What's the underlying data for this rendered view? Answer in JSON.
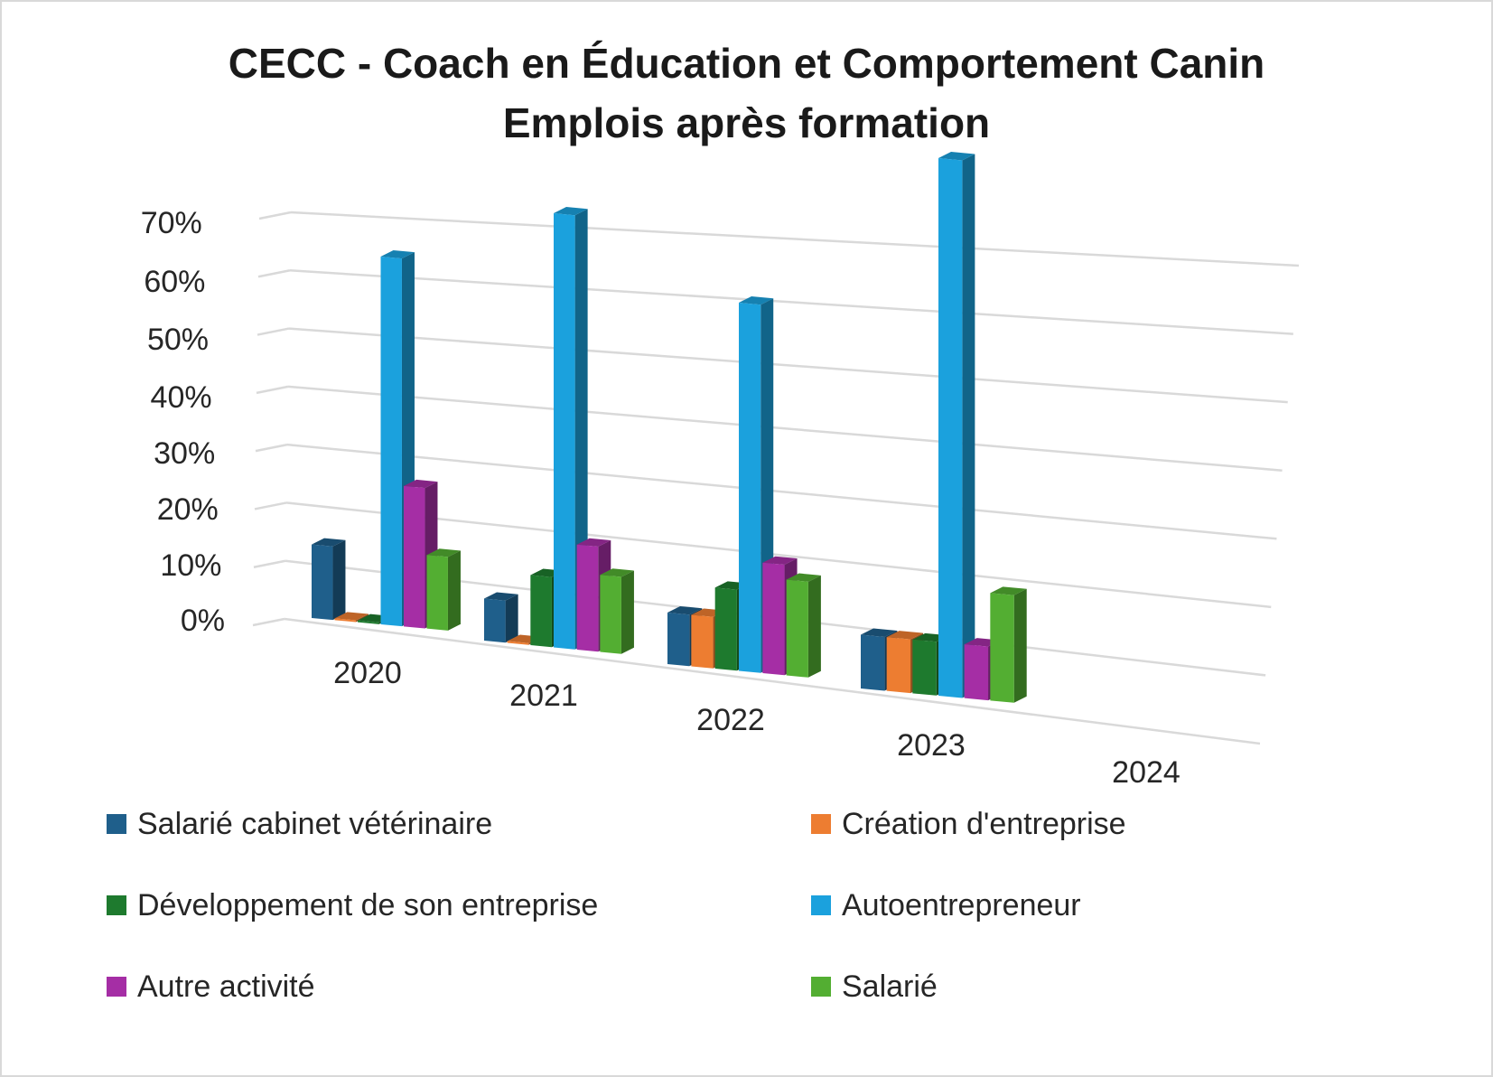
{
  "chart_data": {
    "type": "bar",
    "subtype": "3d-clustered-column",
    "title": "CECC - Coach en Éducation et Comportement Canin",
    "subtitle": "Emplois après formation",
    "categories": [
      "2020",
      "2021",
      "2022",
      "2023",
      "2024"
    ],
    "yticks": [
      "0%",
      "10%",
      "20%",
      "30%",
      "40%",
      "50%",
      "60%",
      "70%"
    ],
    "ylim": [
      0,
      70
    ],
    "grid": true,
    "legend_position": "bottom",
    "series": [
      {
        "name": "Salarié cabinet vétérinaire",
        "color": "#1f5f8b",
        "values": [
          11,
          6,
          7,
          7,
          0
        ]
      },
      {
        "name": "Création d'entreprise",
        "color": "#ed7d31",
        "values": [
          0,
          0,
          7,
          7,
          0
        ]
      },
      {
        "name": "Développement de son entreprise",
        "color": "#1e7a2e",
        "values": [
          0,
          10,
          11,
          7,
          0
        ]
      },
      {
        "name": "Autoentrepreneur",
        "color": "#1ba1dd",
        "values": [
          55,
          62,
          50,
          70,
          0
        ]
      },
      {
        "name": "Autre activité",
        "color": "#a52ea5",
        "values": [
          21,
          15,
          15,
          7,
          0
        ]
      },
      {
        "name": "Salarié",
        "color": "#53ae32",
        "values": [
          11,
          11,
          13,
          14,
          0
        ]
      }
    ]
  }
}
